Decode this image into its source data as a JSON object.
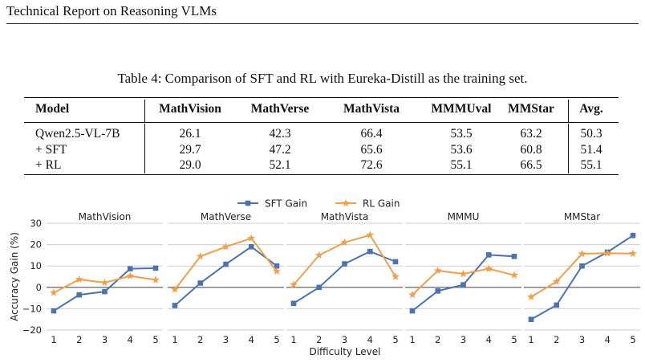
{
  "header": {
    "running_title": "Technical Report on Reasoning VLMs"
  },
  "table": {
    "caption": "Table 4: Comparison of SFT and RL with Eureka-Distill as the training set.",
    "columns": [
      "Model",
      "MathVision",
      "MathVerse",
      "MathVista",
      "MMMUval",
      "MMStar",
      "Avg."
    ],
    "rows": [
      [
        "Qwen2.5-VL-7B",
        "26.1",
        "42.3",
        "66.4",
        "53.5",
        "63.2",
        "50.3"
      ],
      [
        "+ SFT",
        "29.7",
        "47.2",
        "65.6",
        "53.6",
        "60.8",
        "51.4"
      ],
      [
        "+ RL",
        "29.0",
        "52.1",
        "72.6",
        "55.1",
        "66.5",
        "55.1"
      ]
    ]
  },
  "chart_data": {
    "type": "line",
    "ylabel": "Accuracy Gain (%)",
    "xlabel": "Difficulty Level",
    "x": [
      1,
      2,
      3,
      4,
      5
    ],
    "x_ticks": [
      "1",
      "2",
      "3",
      "4",
      "5"
    ],
    "ylim": [
      -20,
      30
    ],
    "y_ticks": [
      "−20",
      "−10",
      "0",
      "10",
      "20",
      "30"
    ],
    "y_tick_values": [
      -20,
      -10,
      0,
      10,
      20,
      30
    ],
    "grid": true,
    "legend": {
      "placement": "top-center",
      "entries": [
        {
          "name": "SFT Gain",
          "color": "#4c72b0",
          "marker": "square"
        },
        {
          "name": "RL Gain",
          "color": "#f0a04b",
          "marker": "star"
        }
      ]
    },
    "panels": [
      {
        "title": "MathVision",
        "series": [
          {
            "name": "SFT Gain",
            "values": [
              -11,
              -3.5,
              -2,
              8.7,
              9
            ]
          },
          {
            "name": "RL Gain",
            "values": [
              -2.5,
              3.7,
              2.2,
              5.3,
              3.5
            ]
          }
        ]
      },
      {
        "title": "MathVerse",
        "series": [
          {
            "name": "SFT Gain",
            "values": [
              -8.5,
              2,
              10.8,
              19,
              10
            ]
          },
          {
            "name": "RL Gain",
            "values": [
              -1,
              14.5,
              19,
              23,
              7.5
            ]
          }
        ]
      },
      {
        "title": "MathVista",
        "series": [
          {
            "name": "SFT Gain",
            "values": [
              -7.5,
              0,
              11,
              16.8,
              12
            ]
          },
          {
            "name": "RL Gain",
            "values": [
              1.2,
              15,
              21,
              24.5,
              5
            ]
          }
        ]
      },
      {
        "title": "MMMU",
        "series": [
          {
            "name": "SFT Gain",
            "values": [
              -11,
              -1.7,
              1.2,
              15.2,
              14.5
            ]
          },
          {
            "name": "RL Gain",
            "values": [
              -3.5,
              7.8,
              6.3,
              8.7,
              5.7
            ]
          }
        ]
      },
      {
        "title": "MMStar",
        "series": [
          {
            "name": "SFT Gain",
            "values": [
              -15,
              -8.3,
              10,
              16.5,
              24.3
            ]
          },
          {
            "name": "RL Gain",
            "values": [
              -4.5,
              2.7,
              15.7,
              16,
              15.8
            ]
          }
        ]
      }
    ]
  }
}
